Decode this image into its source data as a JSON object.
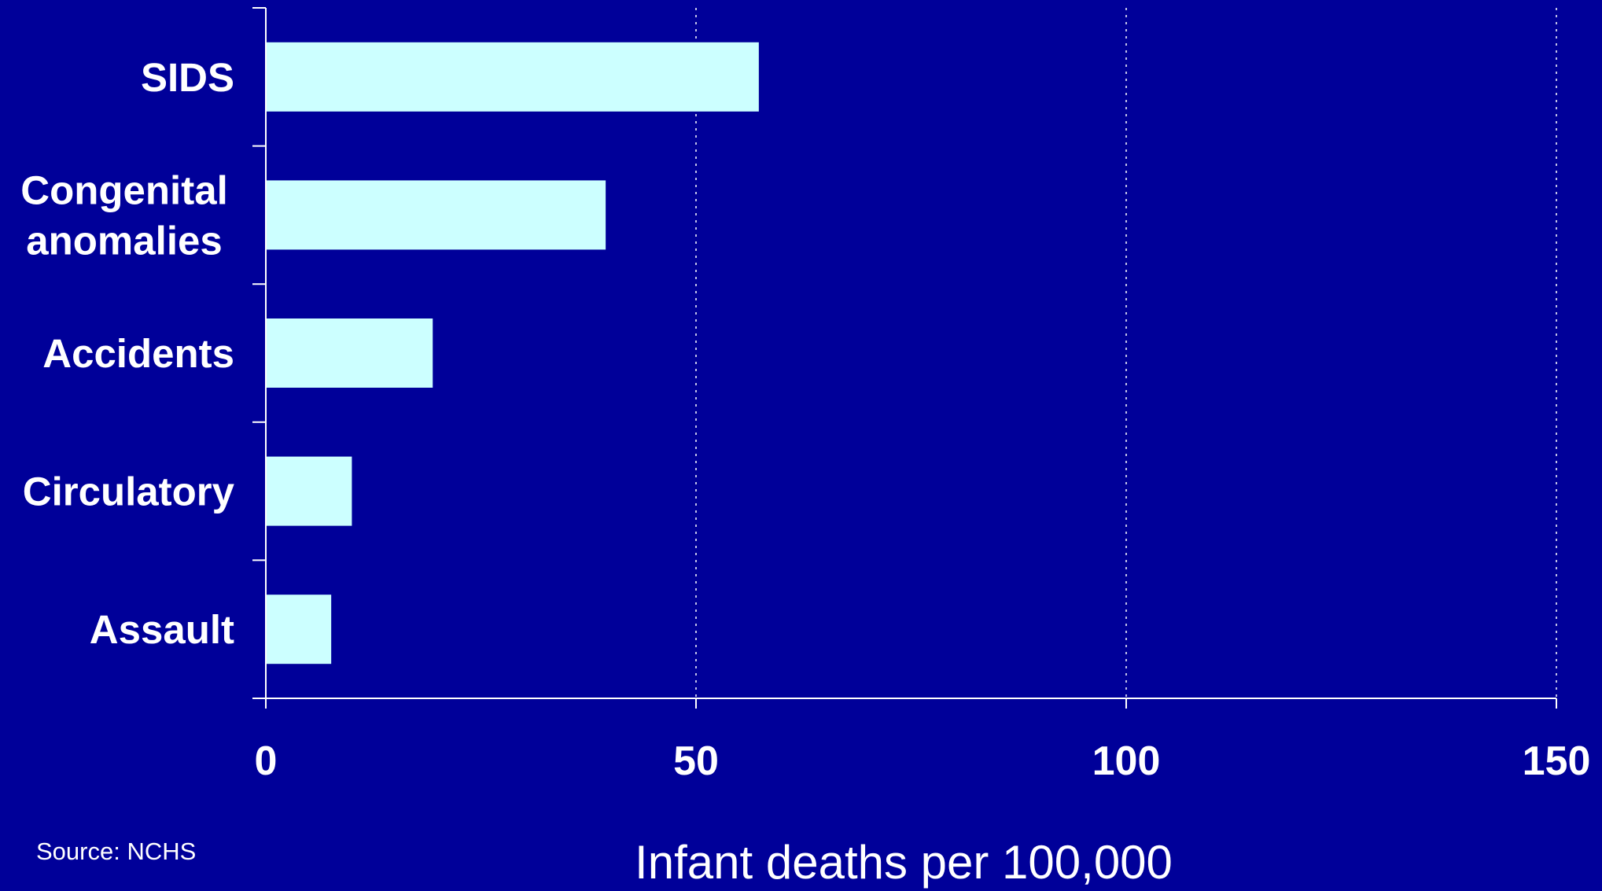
{
  "chart_data": {
    "type": "bar",
    "orientation": "horizontal",
    "categories": [
      "SIDS",
      "Congenital anomalies",
      "Accidents",
      "Circulatory",
      "Assault"
    ],
    "category_lines": [
      [
        "SIDS"
      ],
      [
        "Congenital",
        "anomalies"
      ],
      [
        "Accidents"
      ],
      [
        "Circulatory"
      ],
      [
        "Assault"
      ]
    ],
    "values": [
      57.3,
      39.5,
      19.4,
      10.0,
      7.6
    ],
    "xlabel": "Infant deaths per 100,000",
    "xlim": [
      0,
      150
    ],
    "xticks": [
      "0",
      "50",
      "100",
      "150"
    ],
    "grid": "vertical dotted",
    "source": "Source: NCHS"
  },
  "colors": {
    "background": "#000099",
    "bar": "#ccffff",
    "axis": "#ffffff",
    "text": "#ffffff"
  }
}
